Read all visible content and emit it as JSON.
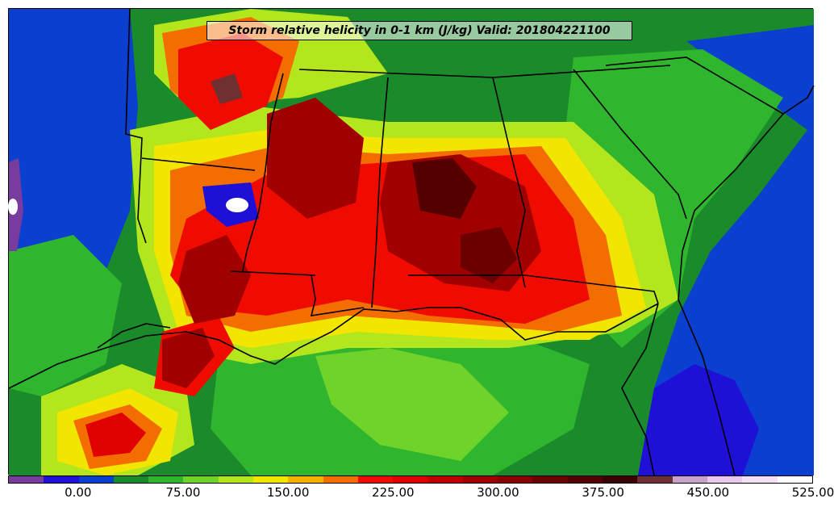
{
  "map": {
    "title": "Storm relative helicity in 0-1 km (J/kg) Valid: 201804221100"
  },
  "colorbar": {
    "colors": [
      "#7a3b9e",
      "#1f10d8",
      "#0b3fd0",
      "#1a8a2a",
      "#2fb52e",
      "#70d32a",
      "#b4e61d",
      "#f2e600",
      "#f7b000",
      "#f36d00",
      "#f00b00",
      "#e00000",
      "#bf0000",
      "#a10000",
      "#8b0000",
      "#6a0000",
      "#550000",
      "#3d0000",
      "#6e3030",
      "#c9a0c9",
      "#ecc7ec",
      "#f7dff7",
      "#ffffff"
    ],
    "tick_labels": [
      "0.00",
      "75.00",
      "150.00",
      "225.00",
      "300.00",
      "375.00",
      "450.00",
      "525.00"
    ]
  },
  "legend_colors": {
    "background_green": "#1a8a2a",
    "ocean_blue": "#0b3fd0",
    "border_color": "#000000"
  }
}
